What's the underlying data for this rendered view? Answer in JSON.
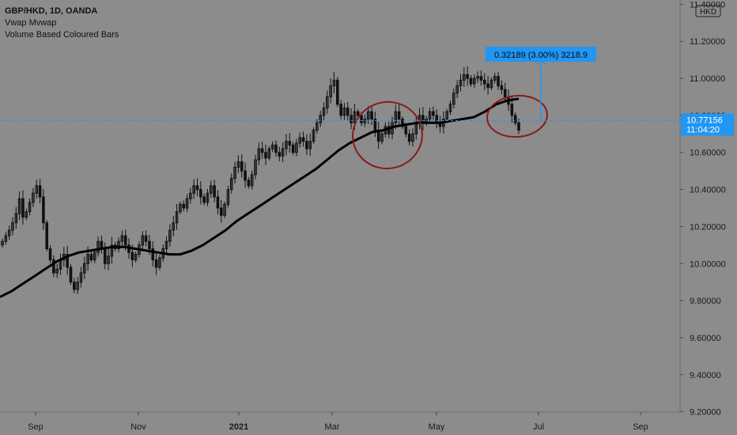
{
  "legend": {
    "symbol_line": "GBP/HKD, 1D, OANDA",
    "indicator_1": "Vwap Mvwap",
    "indicator_2": "Volume Based Coloured Bars"
  },
  "currency_badge": "HKD",
  "price_label": {
    "price": "10.77156",
    "countdown": "11:04:20"
  },
  "measure_label": "0.32189 (3.00%) 3218.9",
  "colors": {
    "background": "#8c8c8c",
    "candle": "#111111",
    "accent": "#2196f3",
    "annotation": "#8b1a1a",
    "ma_line": "#000000"
  },
  "chart_data": {
    "type": "candlestick",
    "symbol": "GBP/HKD",
    "interval": "1D",
    "source": "OANDA",
    "y_ticks": [
      "11.40000",
      "11.20000",
      "11.00000",
      "10.80000",
      "10.60000",
      "10.40000",
      "10.20000",
      "10.00000",
      "9.80000",
      "9.60000",
      "9.40000",
      "9.20000"
    ],
    "x_ticks": [
      {
        "label": "Sep",
        "bold": false
      },
      {
        "label": "Nov",
        "bold": false
      },
      {
        "label": "2021",
        "bold": true
      },
      {
        "label": "Mar",
        "bold": false
      },
      {
        "label": "May",
        "bold": false
      },
      {
        "label": "Jul",
        "bold": false
      },
      {
        "label": "Sep",
        "bold": false
      }
    ],
    "ylim": [
      9.2,
      11.45
    ],
    "last_price": 10.77156,
    "close_series": [
      10.12,
      10.15,
      10.18,
      10.22,
      10.27,
      10.35,
      10.25,
      10.28,
      10.33,
      10.38,
      10.42,
      10.36,
      10.22,
      10.08,
      10.02,
      9.95,
      9.97,
      10.02,
      10.05,
      9.98,
      9.9,
      9.86,
      9.9,
      9.95,
      10.0,
      10.05,
      10.02,
      10.06,
      10.12,
      10.08,
      10.0,
      10.04,
      10.1,
      10.08,
      10.12,
      10.15,
      10.1,
      10.06,
      10.02,
      10.05,
      10.1,
      10.15,
      10.12,
      10.08,
      10.02,
      9.98,
      10.03,
      10.08,
      10.12,
      10.18,
      10.22,
      10.28,
      10.32,
      10.3,
      10.35,
      10.38,
      10.42,
      10.4,
      10.36,
      10.33,
      10.38,
      10.42,
      10.36,
      10.3,
      10.26,
      10.32,
      10.4,
      10.46,
      10.52,
      10.55,
      10.5,
      10.45,
      10.42,
      10.48,
      10.56,
      10.62,
      10.6,
      10.57,
      10.62,
      10.64,
      10.6,
      10.58,
      10.62,
      10.66,
      10.64,
      10.6,
      10.65,
      10.68,
      10.66,
      10.62,
      10.66,
      10.72,
      10.76,
      10.8,
      10.84,
      10.9,
      10.96,
      10.99,
      10.86,
      10.8,
      10.84,
      10.8,
      10.76,
      10.82,
      10.8,
      10.76,
      10.78,
      10.82,
      10.78,
      10.72,
      10.66,
      10.7,
      10.74,
      10.7,
      10.76,
      10.82,
      10.78,
      10.74,
      10.7,
      10.66,
      10.7,
      10.76,
      10.8,
      10.76,
      10.78,
      10.82,
      10.8,
      10.76,
      10.74,
      10.78,
      10.82,
      10.86,
      10.92,
      10.96,
      10.99,
      11.02,
      11.0,
      10.97,
      11.0,
      11.01,
      10.99,
      10.97,
      10.95,
      10.99,
      11.01,
      10.96,
      10.94,
      10.9,
      10.86,
      10.8,
      10.76,
      10.72
    ],
    "moving_average": [
      9.82,
      9.85,
      9.89,
      9.93,
      9.97,
      10.01,
      10.04,
      10.06,
      10.07,
      10.08,
      10.09,
      10.09,
      10.08,
      10.07,
      10.06,
      10.05,
      10.05,
      10.07,
      10.1,
      10.14,
      10.18,
      10.23,
      10.27,
      10.31,
      10.35,
      10.39,
      10.43,
      10.47,
      10.51,
      10.56,
      10.61,
      10.65,
      10.68,
      10.71,
      10.72,
      10.74,
      10.75,
      10.76,
      10.76,
      10.76,
      10.77,
      10.78,
      10.79,
      10.82,
      10.86,
      10.88,
      10.89
    ],
    "measure": {
      "change": 0.32189,
      "percent": "3.00%",
      "pips": 3218.9,
      "from": 10.77,
      "to": 11.1
    }
  }
}
